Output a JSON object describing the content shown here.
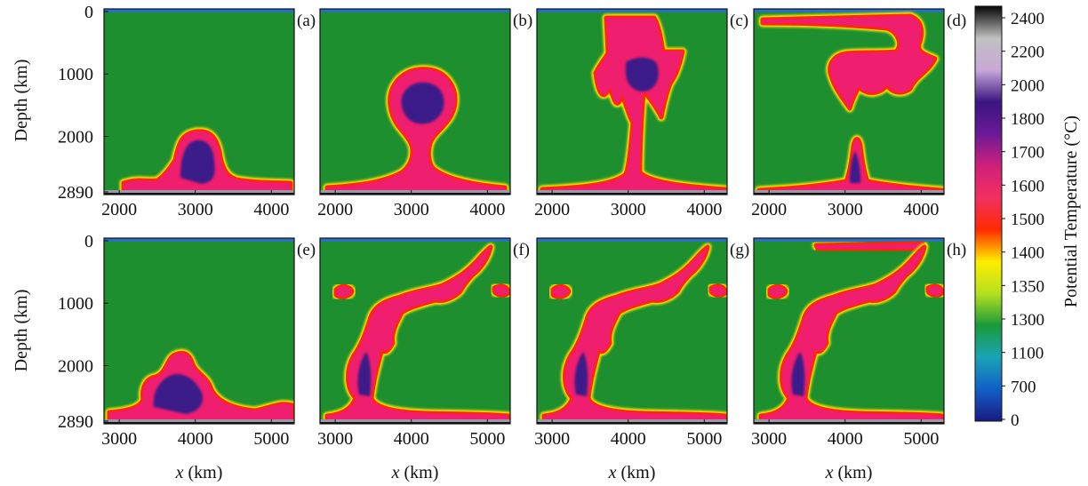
{
  "chart_data": {
    "type": "heatmap",
    "title": "",
    "panels": [
      {
        "label": "(a)",
        "row": 0,
        "x_ticks": [
          "2000",
          "3000",
          "4000"
        ],
        "y_ticks": [
          "0",
          "1000",
          "2000",
          "2890"
        ],
        "xlim": [
          1800,
          4300
        ],
        "ylim": [
          0,
          2890
        ]
      },
      {
        "label": "(b)",
        "row": 0,
        "x_ticks": [
          "2000",
          "3000",
          "4000"
        ],
        "y_ticks": [
          "0",
          "1000",
          "2000",
          "2890"
        ],
        "xlim": [
          1800,
          4300
        ],
        "ylim": [
          0,
          2890
        ]
      },
      {
        "label": "(c)",
        "row": 0,
        "x_ticks": [
          "2000",
          "3000",
          "4000"
        ],
        "y_ticks": [
          "0",
          "1000",
          "2000",
          "2890"
        ],
        "xlim": [
          1800,
          4300
        ],
        "ylim": [
          0,
          2890
        ]
      },
      {
        "label": "(d)",
        "row": 0,
        "x_ticks": [
          "2000",
          "3000",
          "4000"
        ],
        "y_ticks": [
          "0",
          "1000",
          "2000",
          "2890"
        ],
        "xlim": [
          1800,
          4300
        ],
        "ylim": [
          0,
          2890
        ]
      },
      {
        "label": "(e)",
        "row": 1,
        "x_ticks": [
          "3000",
          "4000",
          "5000"
        ],
        "y_ticks": [
          "0",
          "1000",
          "2000",
          "2890"
        ],
        "xlim": [
          2800,
          5300
        ],
        "ylim": [
          0,
          2890
        ]
      },
      {
        "label": "(f)",
        "row": 1,
        "x_ticks": [
          "3000",
          "4000",
          "5000"
        ],
        "y_ticks": [
          "0",
          "1000",
          "2000",
          "2890"
        ],
        "xlim": [
          2800,
          5300
        ],
        "ylim": [
          0,
          2890
        ]
      },
      {
        "label": "(g)",
        "row": 1,
        "x_ticks": [
          "3000",
          "4000",
          "5000"
        ],
        "y_ticks": [
          "0",
          "1000",
          "2000",
          "2890"
        ],
        "xlim": [
          2800,
          5300
        ],
        "ylim": [
          0,
          2890
        ]
      },
      {
        "label": "(h)",
        "row": 1,
        "x_ticks": [
          "3000",
          "4000",
          "5000"
        ],
        "y_ticks": [
          "0",
          "1000",
          "2000",
          "2890"
        ],
        "xlim": [
          2800,
          5300
        ],
        "ylim": [
          0,
          2890
        ]
      }
    ],
    "ylabel": "Depth (km)",
    "xlabel_italic": "x",
    "xlabel_unit": " (km)",
    "colorbar": {
      "label": "Potential Temperature (°C)",
      "ticks": [
        "2400",
        "2200",
        "2000",
        "1800",
        "1700",
        "1600",
        "1500",
        "1400",
        "1350",
        "1300",
        "1100",
        "700",
        "0"
      ],
      "colors": [
        "#050505",
        "#c0c0c0",
        "#c9a8d8",
        "#3a1580",
        "#6a1a96",
        "#d0207a",
        "#f23060",
        "#ff2a00",
        "#ffee00",
        "#b4e020",
        "#1a9a3a",
        "#1aa3b5",
        "#1060c8",
        "#1a1a80"
      ]
    },
    "colors": {
      "background": "#1e8f2e",
      "crust": "#2a6fc0",
      "plume_core": "#3a1a88",
      "plume_rim": "#f01e6e",
      "plume_hot": "#ff2800",
      "plume_edge": "#ffe800",
      "basal_layer": "#9a9aa8"
    }
  }
}
